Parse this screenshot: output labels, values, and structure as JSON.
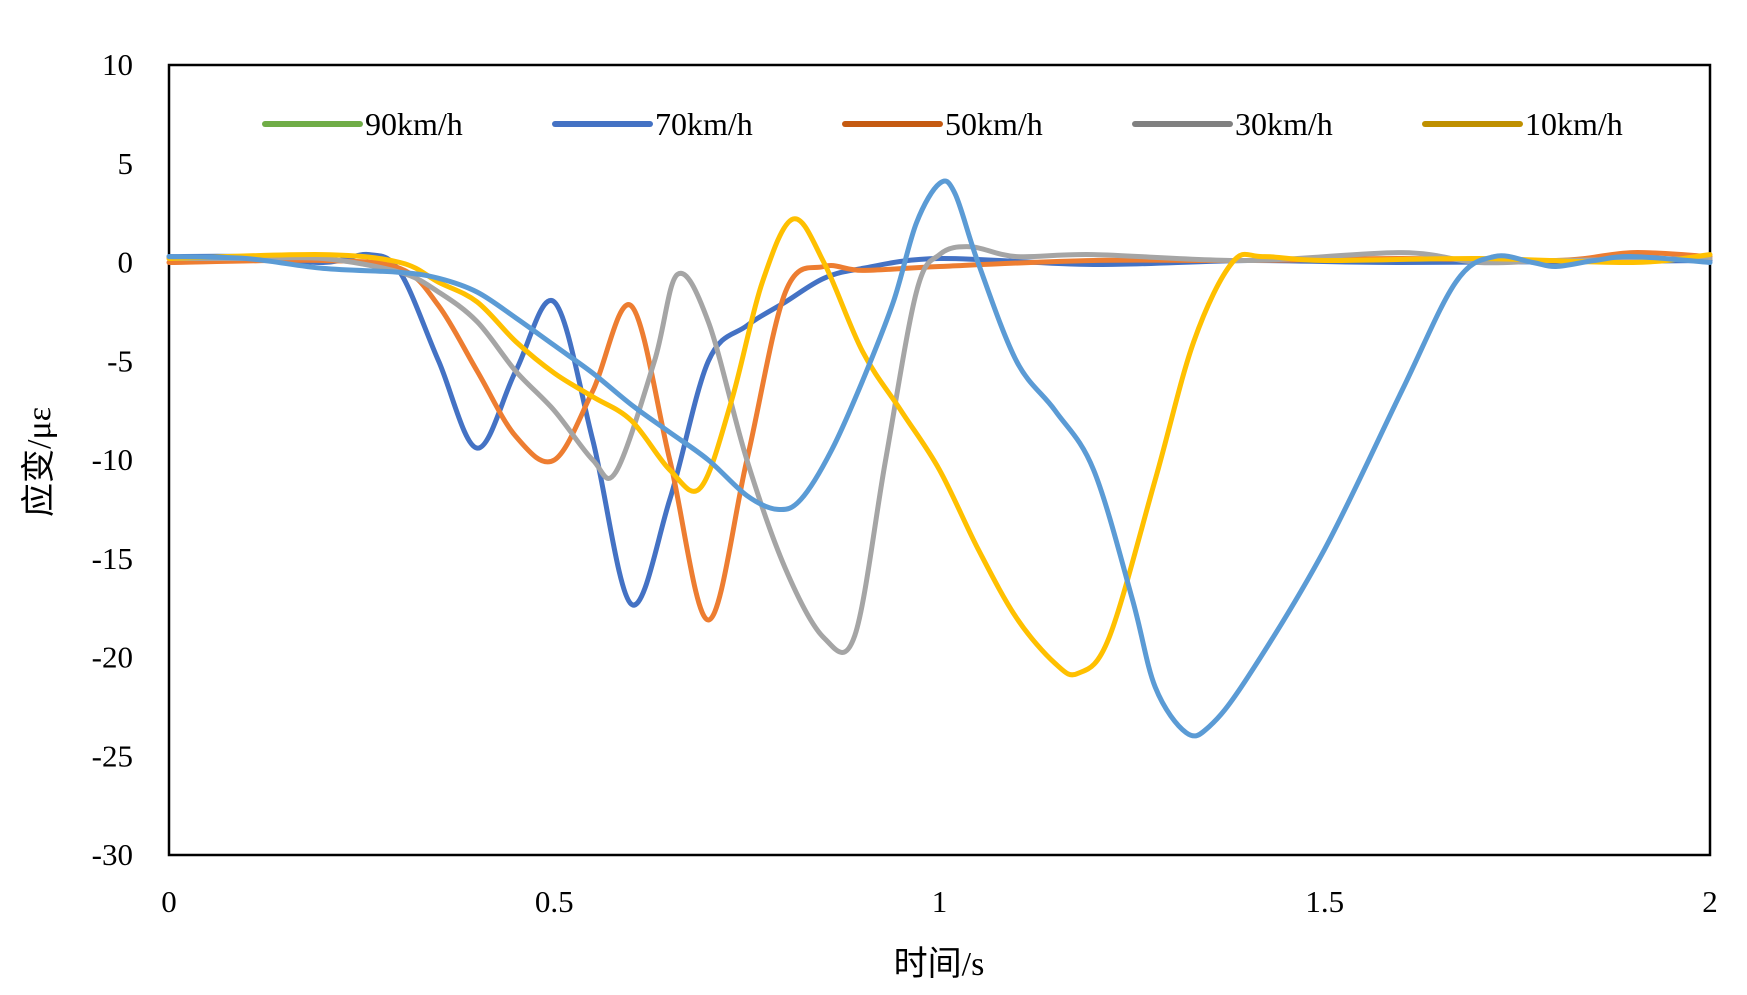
{
  "chart_data": {
    "type": "line",
    "title": "",
    "xlabel": "时间/s",
    "ylabel": "应变/με",
    "xlim": [
      0,
      2
    ],
    "ylim": [
      -30,
      10
    ],
    "xticks": [
      0,
      0.5,
      1,
      1.5,
      2
    ],
    "xtick_labels": [
      "0",
      "0.5",
      "1",
      "1.5",
      "2"
    ],
    "yticks": [
      10,
      5,
      0,
      -5,
      -10,
      -15,
      -20,
      -25,
      -30
    ],
    "ytick_labels": [
      "10",
      "5",
      "0",
      "-5",
      "-10",
      "-15",
      "-20",
      "-25",
      "-30"
    ],
    "grid": false,
    "legend_position": "top",
    "legend": [
      {
        "name": "90km/h",
        "color": "#70AD47"
      },
      {
        "name": "70km/h",
        "color": "#4472C4"
      },
      {
        "name": "50km/h",
        "color": "#C55A11"
      },
      {
        "name": "30km/h",
        "color": "#808080"
      },
      {
        "name": "10km/h",
        "color": "#BF9000"
      }
    ],
    "series": [
      {
        "name": "70km/h",
        "color": "#4472C4",
        "x": [
          0,
          0.1,
          0.2,
          0.26,
          0.3,
          0.35,
          0.4,
          0.45,
          0.5,
          0.55,
          0.6,
          0.65,
          0.7,
          0.75,
          0.8,
          0.85,
          0.9,
          1.0,
          1.2,
          1.4,
          1.6,
          2.0
        ],
        "y": [
          0.3,
          0.3,
          0.0,
          0.4,
          -0.5,
          -5.0,
          -9.4,
          -5.5,
          -2.0,
          -9.0,
          -17.3,
          -12.0,
          -5.0,
          -3.2,
          -2.0,
          -0.8,
          -0.3,
          0.2,
          -0.1,
          0.1,
          0.0,
          0.1
        ]
      },
      {
        "name": "50km/h",
        "color": "#ED7D31",
        "x": [
          0,
          0.2,
          0.3,
          0.35,
          0.4,
          0.45,
          0.5,
          0.55,
          0.6,
          0.65,
          0.7,
          0.75,
          0.8,
          0.85,
          0.9,
          1.0,
          1.2,
          1.4,
          1.6,
          1.8,
          1.9,
          2.0
        ],
        "y": [
          0.0,
          0.1,
          -0.3,
          -2.2,
          -5.5,
          -8.8,
          -10.0,
          -6.5,
          -2.2,
          -10.0,
          -18.1,
          -10.0,
          -1.5,
          -0.2,
          -0.4,
          -0.2,
          0.1,
          0.1,
          0.2,
          0.1,
          0.5,
          0.3
        ]
      },
      {
        "name": "30km/h",
        "color": "#A5A5A5",
        "x": [
          0,
          0.1,
          0.2,
          0.3,
          0.35,
          0.4,
          0.45,
          0.5,
          0.55,
          0.58,
          0.63,
          0.66,
          0.7,
          0.75,
          0.8,
          0.85,
          0.89,
          0.93,
          0.97,
          1.0,
          1.04,
          1.1,
          1.2,
          1.4,
          1.6,
          1.7,
          1.8,
          2.0
        ],
        "y": [
          0.2,
          0.2,
          0.2,
          -0.5,
          -1.5,
          -3.0,
          -5.5,
          -7.5,
          -10.0,
          -10.6,
          -5.0,
          -0.6,
          -3.0,
          -10.0,
          -15.5,
          -19.0,
          -18.9,
          -10.0,
          -1.5,
          0.4,
          0.8,
          0.3,
          0.4,
          0.1,
          0.5,
          0.0,
          0.1,
          0.2
        ]
      },
      {
        "name": "10km/h",
        "color": "#FFC000",
        "x": [
          0,
          0.2,
          0.3,
          0.35,
          0.4,
          0.45,
          0.5,
          0.55,
          0.6,
          0.65,
          0.69,
          0.73,
          0.77,
          0.81,
          0.85,
          0.9,
          0.95,
          1.0,
          1.05,
          1.1,
          1.15,
          1.18,
          1.22,
          1.28,
          1.33,
          1.38,
          1.42,
          1.5,
          1.7,
          1.9,
          2.0
        ],
        "y": [
          0.2,
          0.4,
          0.0,
          -1.0,
          -2.0,
          -4.0,
          -5.6,
          -6.8,
          -8.0,
          -10.5,
          -11.4,
          -7.0,
          -1.0,
          2.2,
          0.0,
          -4.5,
          -7.5,
          -10.5,
          -14.5,
          -18.0,
          -20.3,
          -20.8,
          -19.0,
          -11.0,
          -4.0,
          0.0,
          0.3,
          0.1,
          0.2,
          0.0,
          0.4
        ]
      },
      {
        "name": "90km/h",
        "color": "#5B9BD5",
        "x": [
          0,
          0.1,
          0.2,
          0.3,
          0.35,
          0.4,
          0.45,
          0.5,
          0.55,
          0.6,
          0.65,
          0.7,
          0.75,
          0.79,
          0.82,
          0.86,
          0.9,
          0.94,
          0.97,
          1.0,
          1.02,
          1.05,
          1.1,
          1.15,
          1.2,
          1.25,
          1.28,
          1.32,
          1.35,
          1.4,
          1.5,
          1.6,
          1.67,
          1.72,
          1.77,
          1.8,
          1.85,
          1.9,
          2.0
        ],
        "y": [
          0.3,
          0.2,
          -0.3,
          -0.5,
          -0.8,
          -1.5,
          -2.8,
          -4.2,
          -5.6,
          -7.2,
          -8.6,
          -10.0,
          -11.8,
          -12.5,
          -12.0,
          -9.5,
          -6.0,
          -2.0,
          2.0,
          4.0,
          3.5,
          0.0,
          -5.0,
          -7.5,
          -10.5,
          -17.0,
          -21.5,
          -23.8,
          -23.5,
          -21.0,
          -14.5,
          -6.5,
          -1.0,
          0.3,
          0.0,
          -0.2,
          0.1,
          0.3,
          0.0
        ]
      }
    ]
  }
}
